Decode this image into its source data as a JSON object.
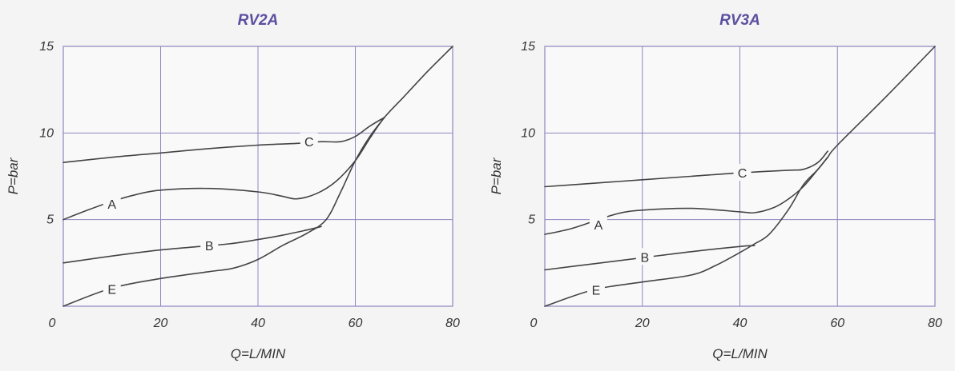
{
  "colors": {
    "title": "#5b4fa0",
    "grid": "#8e86c0",
    "curve": "#444444",
    "background": "#f4f4f4"
  },
  "chart_data": [
    {
      "type": "line",
      "title": "RV2A",
      "xlabel": "Q=L/MIN",
      "ylabel": "P=bar",
      "xlim": [
        0,
        80
      ],
      "ylim": [
        0,
        15
      ],
      "x_ticks": [
        0,
        20,
        40,
        60,
        80
      ],
      "y_ticks": [
        5,
        10,
        15
      ],
      "grid": true,
      "series": [
        {
          "name": "C",
          "label_at": [
            50.5,
            9.5
          ],
          "points": [
            [
              0,
              8.3
            ],
            [
              10,
              8.6
            ],
            [
              20,
              8.85
            ],
            [
              30,
              9.1
            ],
            [
              40,
              9.3
            ],
            [
              48,
              9.4
            ],
            [
              53,
              9.5
            ],
            [
              57,
              9.5
            ],
            [
              60,
              9.8
            ],
            [
              63,
              10.4
            ],
            [
              66,
              10.9
            ]
          ]
        },
        {
          "name": "A",
          "label_at": [
            10,
            5.9
          ],
          "points": [
            [
              0,
              5.0
            ],
            [
              5,
              5.55
            ],
            [
              10,
              6.05
            ],
            [
              15,
              6.45
            ],
            [
              20,
              6.7
            ],
            [
              30,
              6.8
            ],
            [
              40,
              6.6
            ],
            [
              45,
              6.35
            ],
            [
              48,
              6.2
            ],
            [
              52,
              6.5
            ],
            [
              56,
              7.2
            ],
            [
              60,
              8.4
            ],
            [
              63,
              9.7
            ],
            [
              66,
              10.9
            ],
            [
              70,
              12.1
            ],
            [
              75,
              13.6
            ],
            [
              80,
              15.0
            ]
          ]
        },
        {
          "name": "B",
          "label_at": [
            30,
            3.5
          ],
          "points": [
            [
              0,
              2.5
            ],
            [
              10,
              2.9
            ],
            [
              20,
              3.25
            ],
            [
              26,
              3.4
            ],
            [
              34,
              3.6
            ],
            [
              40,
              3.85
            ],
            [
              45,
              4.1
            ],
            [
              50,
              4.4
            ],
            [
              53,
              4.6
            ]
          ]
        },
        {
          "name": "E",
          "label_at": [
            10,
            1.0
          ],
          "points": [
            [
              0,
              0
            ],
            [
              10,
              1.05
            ],
            [
              20,
              1.6
            ],
            [
              30,
              2.0
            ],
            [
              35,
              2.2
            ],
            [
              40,
              2.7
            ],
            [
              45,
              3.5
            ],
            [
              50,
              4.2
            ],
            [
              54,
              5.0
            ],
            [
              57,
              6.6
            ],
            [
              60,
              8.4
            ],
            [
              63,
              9.8
            ],
            [
              66,
              10.9
            ]
          ]
        }
      ]
    },
    {
      "type": "line",
      "title": "RV3A",
      "xlabel": "Q=L/MIN",
      "ylabel": "P=bar",
      "xlim": [
        0,
        80
      ],
      "ylim": [
        0,
        15
      ],
      "x_ticks": [
        0,
        20,
        40,
        60,
        80
      ],
      "y_ticks": [
        5,
        10,
        15
      ],
      "grid": true,
      "series": [
        {
          "name": "C",
          "label_at": [
            40.5,
            7.7
          ],
          "points": [
            [
              0,
              6.9
            ],
            [
              10,
              7.1
            ],
            [
              20,
              7.3
            ],
            [
              30,
              7.5
            ],
            [
              40,
              7.7
            ],
            [
              50,
              7.85
            ],
            [
              53,
              7.9
            ],
            [
              56,
              8.3
            ],
            [
              58,
              8.95
            ]
          ]
        },
        {
          "name": "A",
          "label_at": [
            11,
            4.7
          ],
          "points": [
            [
              0,
              4.15
            ],
            [
              5,
              4.45
            ],
            [
              10,
              4.9
            ],
            [
              15,
              5.35
            ],
            [
              20,
              5.55
            ],
            [
              30,
              5.65
            ],
            [
              40,
              5.45
            ],
            [
              43,
              5.4
            ],
            [
              47,
              5.7
            ],
            [
              50,
              6.2
            ],
            [
              53,
              6.9
            ],
            [
              56,
              7.9
            ],
            [
              58,
              8.6
            ],
            [
              60,
              9.3
            ],
            [
              70,
              12.1
            ],
            [
              80,
              15.0
            ]
          ]
        },
        {
          "name": "B",
          "label_at": [
            20.5,
            2.85
          ],
          "points": [
            [
              0,
              2.1
            ],
            [
              10,
              2.45
            ],
            [
              20,
              2.8
            ],
            [
              30,
              3.15
            ],
            [
              40,
              3.45
            ],
            [
              43,
              3.5
            ]
          ]
        },
        {
          "name": "E",
          "label_at": [
            10.5,
            0.95
          ],
          "points": [
            [
              0,
              0
            ],
            [
              10,
              0.95
            ],
            [
              20,
              1.4
            ],
            [
              30,
              1.8
            ],
            [
              35,
              2.35
            ],
            [
              40,
              3.1
            ],
            [
              43,
              3.6
            ],
            [
              46,
              4.15
            ],
            [
              50,
              5.6
            ],
            [
              53,
              7.0
            ],
            [
              56,
              7.9
            ],
            [
              58,
              8.6
            ]
          ]
        }
      ]
    }
  ]
}
